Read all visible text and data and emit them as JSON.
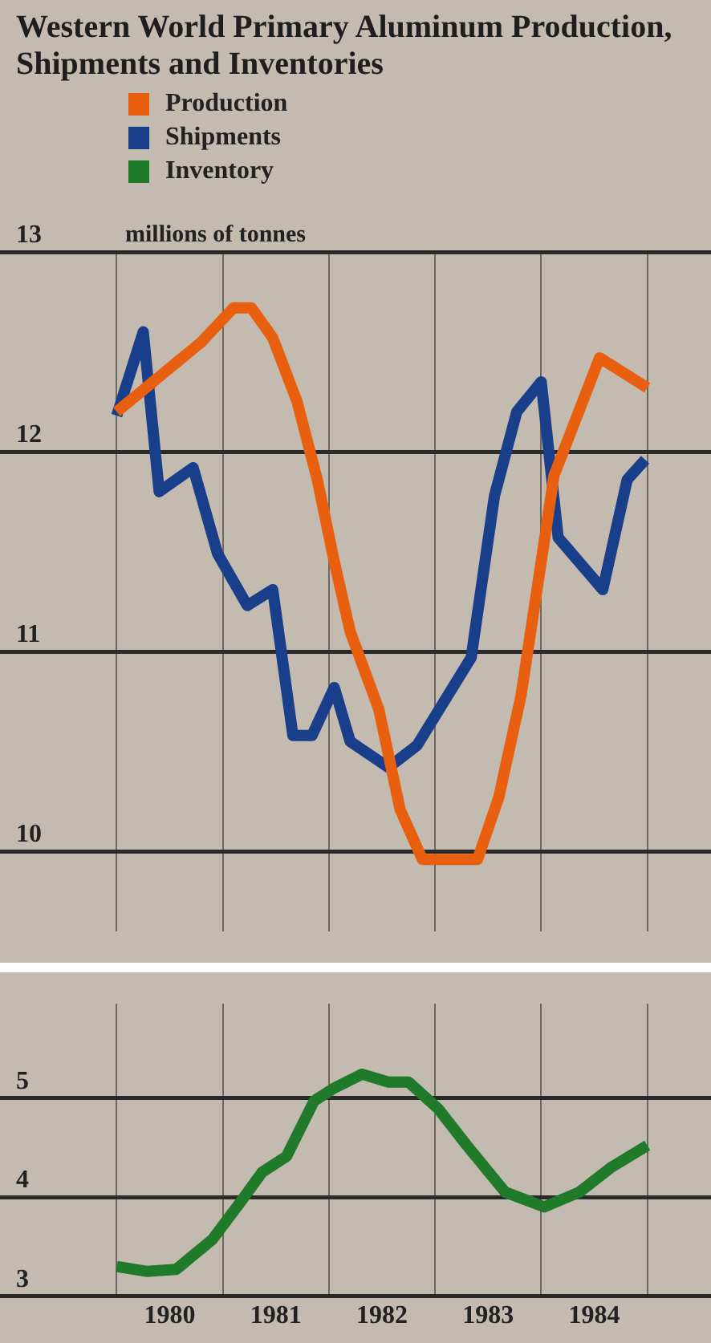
{
  "chart_data": [
    {
      "type": "line",
      "title": "Western World Primary Aluminum Production, Shipments and Inventories",
      "ylabel": "millions of tonnes",
      "legend": "top left",
      "grid": true,
      "tick_labels": "y",
      "xlim": [
        1978.9,
        1985.6
      ],
      "xticks": [
        {
          "value": 1980,
          "label": null
        },
        {
          "value": 1981,
          "label": null
        },
        {
          "value": 1982,
          "label": null
        },
        {
          "value": 1983,
          "label": null
        },
        {
          "value": 1984,
          "label": null
        },
        {
          "value": 1985,
          "label": null
        }
      ],
      "ylim": [
        9.6,
        13
      ],
      "yticks": [
        10,
        11,
        12,
        13
      ],
      "series": [
        {
          "name": "Production",
          "color": "#e8600f",
          "x": [
            1980.0,
            1980.8,
            1981.1,
            1981.27,
            1981.47,
            1981.7,
            1981.89,
            1982.05,
            1982.2,
            1982.47,
            1982.67,
            1982.88,
            1983.4,
            1983.6,
            1983.81,
            1984.0,
            1984.12,
            1984.55,
            1985.0
          ],
          "values": [
            12.2,
            12.55,
            12.72,
            12.72,
            12.57,
            12.25,
            11.86,
            11.45,
            11.1,
            10.71,
            10.21,
            9.96,
            9.96,
            10.27,
            10.78,
            11.45,
            11.88,
            12.47,
            12.32
          ]
        },
        {
          "name": "Shipments",
          "color": "#1a3f8a",
          "x": [
            1980.0,
            1980.25,
            1980.4,
            1980.72,
            1980.95,
            1981.23,
            1981.47,
            1981.66,
            1981.84,
            1982.05,
            1982.2,
            1982.56,
            1982.83,
            1983.34,
            1983.56,
            1983.77,
            1984.0,
            1984.16,
            1984.58,
            1984.81,
            1984.98
          ],
          "values": [
            12.18,
            12.6,
            11.8,
            11.92,
            11.49,
            11.23,
            11.31,
            10.58,
            10.58,
            10.82,
            10.55,
            10.42,
            10.53,
            10.97,
            11.78,
            12.2,
            12.35,
            11.57,
            11.31,
            11.86,
            11.96
          ]
        }
      ]
    },
    {
      "type": "line",
      "grid": true,
      "legend": "top left",
      "xlim": [
        1978.9,
        1985.6
      ],
      "xticks": [
        {
          "value": 1980,
          "label": null
        },
        {
          "value": 1980.5,
          "label": "1980"
        },
        {
          "value": 1981,
          "label": null
        },
        {
          "value": 1981.5,
          "label": "1981"
        },
        {
          "value": 1982,
          "label": null
        },
        {
          "value": 1982.5,
          "label": "1982"
        },
        {
          "value": 1983,
          "label": null
        },
        {
          "value": 1983.5,
          "label": "1983"
        },
        {
          "value": 1984,
          "label": null
        },
        {
          "value": 1984.5,
          "label": "1984"
        },
        {
          "value": 1985,
          "label": null
        }
      ],
      "ylim": [
        3,
        5.95
      ],
      "yticks": [
        3,
        4,
        5
      ],
      "series": [
        {
          "name": "Inventory",
          "color": "#1f7a2a",
          "x": [
            1980.0,
            1980.28,
            1980.56,
            1980.9,
            1981.16,
            1981.37,
            1981.6,
            1981.86,
            1982.05,
            1982.31,
            1982.56,
            1982.75,
            1983.03,
            1983.3,
            1983.66,
            1984.03,
            1984.36,
            1984.66,
            1985.0
          ],
          "values": [
            3.3,
            3.25,
            3.27,
            3.57,
            3.94,
            4.25,
            4.41,
            4.97,
            5.1,
            5.24,
            5.16,
            5.16,
            4.89,
            4.52,
            4.05,
            3.9,
            4.05,
            4.3,
            4.52
          ]
        }
      ]
    }
  ]
}
